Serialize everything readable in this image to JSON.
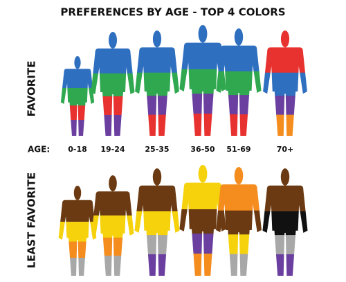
{
  "title": "PREFERENCES BY AGE - TOP 4 COLORS",
  "favorite_label": "FAVORITE",
  "least_favorite_label": "LEAST FAVORITE",
  "age_label": "AGE:",
  "groups": [
    {
      "age": "0-18",
      "favorite": [
        "#2f6fc0",
        "#2fa84f",
        "#e8322f",
        "#6a3fa0"
      ],
      "least_favorite": [
        "#6b3a12",
        "#f5d20c",
        "#f58c1e",
        "#a8a8a8"
      ]
    },
    {
      "age": "19-24",
      "favorite": [
        "#2f6fc0",
        "#2fa84f",
        "#e8322f",
        "#6a3fa0"
      ],
      "least_favorite": [
        "#6b3a12",
        "#f5d20c",
        "#f58c1e",
        "#a8a8a8"
      ]
    },
    {
      "age": "25-35",
      "favorite": [
        "#2f6fc0",
        "#2fa84f",
        "#6a3fa0",
        "#e8322f"
      ],
      "least_favorite": [
        "#6b3a12",
        "#f5d20c",
        "#a8a8a8",
        "#6a3fa0"
      ]
    },
    {
      "age": "36-50",
      "favorite": [
        "#2f6fc0",
        "#2fa84f",
        "#6a3fa0",
        "#e8322f"
      ],
      "least_favorite": [
        "#f5d20c",
        "#6b3a12",
        "#6a3fa0",
        "#f58c1e"
      ]
    },
    {
      "age": "51-69",
      "favorite": [
        "#2f6fc0",
        "#2fa84f",
        "#6a3fa0",
        "#e8322f"
      ],
      "least_favorite": [
        "#f58c1e",
        "#6b3a12",
        "#f5d20c",
        "#a8a8a8"
      ]
    },
    {
      "age": "70+",
      "favorite": [
        "#e8322f",
        "#2f6fc0",
        "#6a3fa0",
        "#f58c1e"
      ],
      "least_favorite": [
        "#6b3a12",
        "#111111",
        "#a8a8a8",
        "#6a3fa0"
      ]
    }
  ]
}
